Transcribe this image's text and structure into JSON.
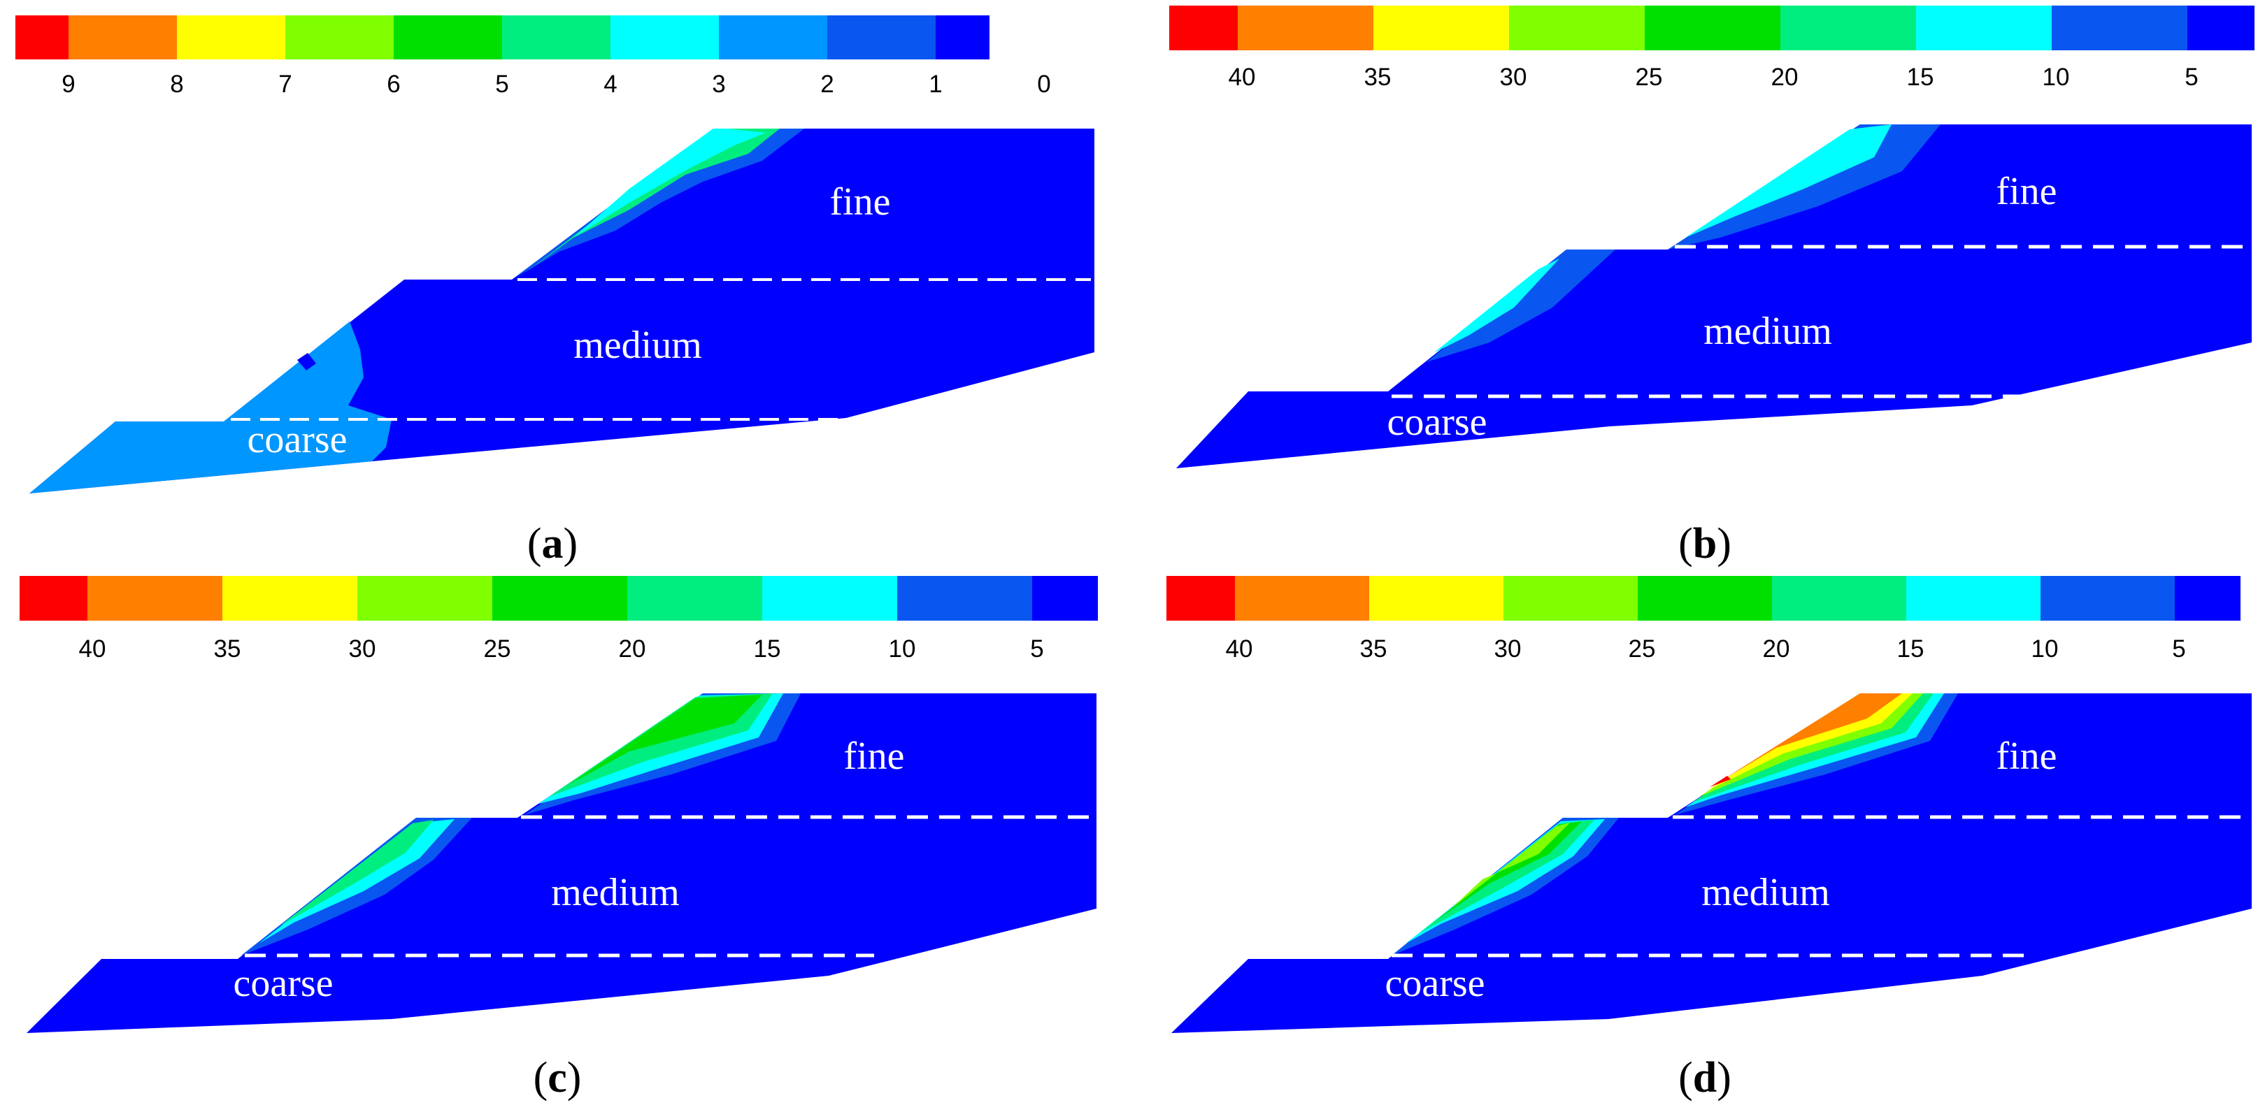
{
  "colors": {
    "red": "#ff0000",
    "orange": "#ff7f00",
    "yellow": "#ffff00",
    "yellow_green": "#80ff00",
    "green": "#00e000",
    "spring_green": "#00ee80",
    "cyan": "#00ffff",
    "light_blue": "#0096ff",
    "blue": "#0a56f0",
    "deep_blue": "#0000ff",
    "dash": "#ffffff",
    "zone_text": "#ffffff"
  },
  "panels": [
    {
      "id": "a",
      "label": "a",
      "scale_ticks": [
        "9",
        "8",
        "7",
        "6",
        "5",
        "4",
        "3",
        "2",
        "1",
        "0"
      ],
      "zones": {
        "fine": "fine",
        "medium": "medium",
        "coarse": "coarse"
      }
    },
    {
      "id": "b",
      "label": "b",
      "scale_ticks": [
        "40",
        "35",
        "30",
        "25",
        "20",
        "15",
        "10",
        "5"
      ],
      "zones": {
        "fine": "fine",
        "medium": "medium",
        "coarse": "coarse"
      }
    },
    {
      "id": "c",
      "label": "c",
      "scale_ticks": [
        "40",
        "35",
        "30",
        "25",
        "20",
        "15",
        "10",
        "5"
      ],
      "zones": {
        "fine": "fine",
        "medium": "medium",
        "coarse": "coarse"
      }
    },
    {
      "id": "d",
      "label": "d",
      "scale_ticks": [
        "40",
        "35",
        "30",
        "25",
        "20",
        "15",
        "10",
        "5"
      ],
      "zones": {
        "fine": "fine",
        "medium": "medium",
        "coarse": "coarse"
      }
    }
  ]
}
